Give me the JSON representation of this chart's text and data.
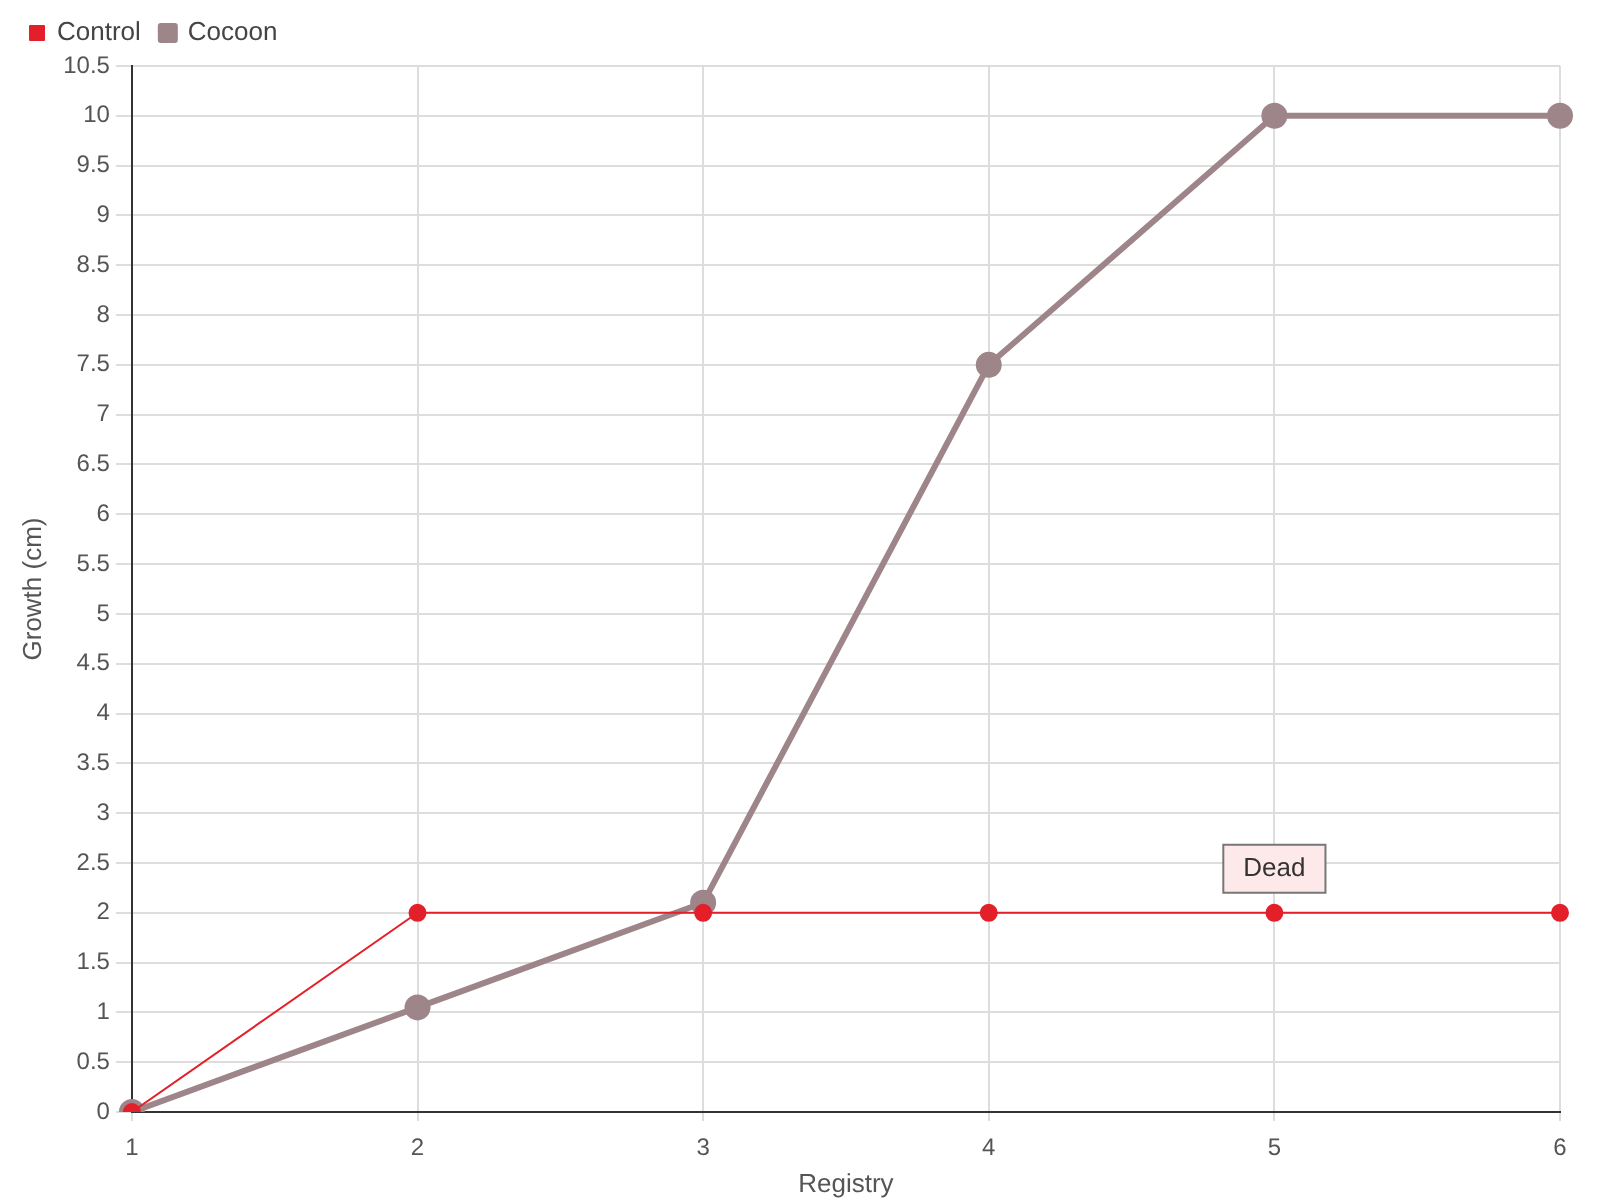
{
  "chart_data": {
    "type": "line",
    "xlabel": "Registry",
    "ylabel": "Growth (cm)",
    "categories": [
      "1",
      "2",
      "3",
      "4",
      "5",
      "6"
    ],
    "series": [
      {
        "name": "Cocoon",
        "color": "#9e8589",
        "values": [
          0,
          1.05,
          2.1,
          7.5,
          10,
          10
        ]
      },
      {
        "name": "Control",
        "color": "#e3202a",
        "values": [
          0,
          2,
          2,
          2,
          2,
          2
        ]
      }
    ],
    "ylim": [
      0,
      10.5
    ],
    "yticks": [
      0,
      0.5,
      1,
      1.5,
      2,
      2.5,
      3,
      3.5,
      4,
      4.5,
      5,
      5.5,
      6,
      6.5,
      7,
      7.5,
      8,
      8.5,
      9,
      9.5,
      10,
      10.5
    ],
    "annotations": [
      {
        "text": "Dead",
        "x": "5",
        "y": 2
      }
    ],
    "grid": true,
    "legend": "top left",
    "marker": "circle"
  }
}
